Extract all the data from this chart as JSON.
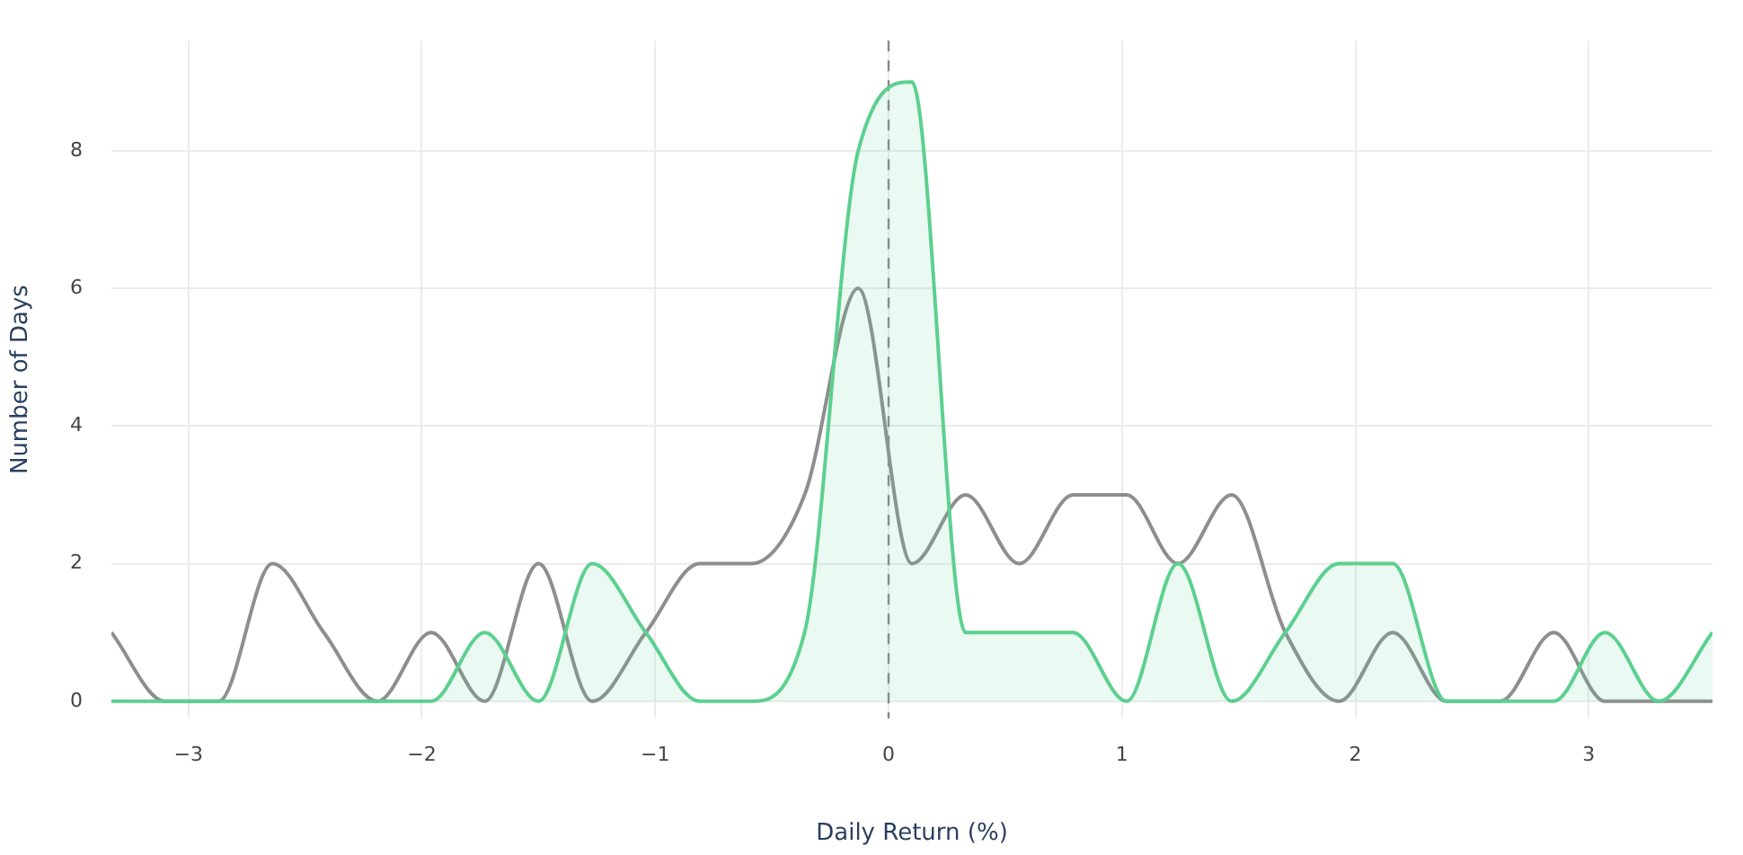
{
  "chart_data": {
    "type": "line",
    "xlabel": "Daily Return (%)",
    "ylabel": "Number of Days",
    "x": [
      -3.33,
      -3.1,
      -2.87,
      -2.64,
      -2.42,
      -2.19,
      -1.96,
      -1.73,
      -1.5,
      -1.27,
      -1.04,
      -0.81,
      -0.59,
      -0.36,
      -0.13,
      0.1,
      0.33,
      0.56,
      0.79,
      1.02,
      1.24,
      1.47,
      1.7,
      1.93,
      2.16,
      2.39,
      2.62,
      2.85,
      3.07,
      3.3,
      3.53
    ],
    "series": [
      {
        "type": "area",
        "color": "#5cd08f",
        "values": [
          0,
          0,
          0,
          0,
          0,
          0,
          0,
          1,
          0,
          2,
          1,
          0,
          0,
          1,
          8,
          9,
          1,
          1,
          1,
          0,
          2,
          0,
          1,
          2,
          2,
          0,
          0,
          0,
          1,
          0,
          1
        ]
      },
      {
        "color": "#8e8e8e",
        "values": [
          1,
          0,
          0,
          2,
          1,
          0,
          1,
          0,
          2,
          0,
          1,
          2,
          2,
          3,
          6,
          2,
          3,
          2,
          3,
          3,
          2,
          3,
          1,
          0,
          1,
          0,
          0,
          1,
          0,
          0,
          0
        ]
      }
    ],
    "xlim": [
      -3.33,
      3.53
    ],
    "xticks": [
      {
        "value": -3,
        "label": "−3"
      },
      {
        "value": -2,
        "label": "−2"
      },
      {
        "value": -1,
        "label": "−1"
      },
      0,
      1,
      2,
      3
    ],
    "ylim": [
      -0.25,
      9.6
    ],
    "yticks": [
      0,
      2,
      4,
      6,
      8
    ],
    "ref_lines": [
      {
        "axis": "x",
        "value": 0,
        "color": "#888888",
        "line_style": "dashed"
      }
    ],
    "grid": true,
    "legend": false,
    "marker": "none"
  }
}
